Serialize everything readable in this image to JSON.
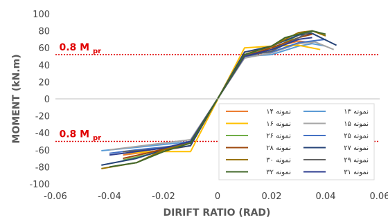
{
  "chart_data": {
    "type": "line",
    "title": "",
    "xlabel": "DIRIFT RATIO (RAD)",
    "ylabel": "MOMENT (kN.m)",
    "xlim": [
      -0.06,
      0.06
    ],
    "ylim": [
      -100,
      100
    ],
    "x_ticks": [
      "-0.06",
      "-0.04",
      "-0.02",
      "0",
      "0.02",
      "0.04",
      "0.06"
    ],
    "y_ticks": [
      "100",
      "80",
      "60",
      "40",
      "20",
      "0",
      "-20",
      "-40",
      "-60",
      "-80",
      "-100"
    ],
    "grid": false,
    "legend_position": "bottom-right",
    "reference_lines": [
      {
        "y": 52,
        "color": "#e00000",
        "style": "dotted"
      },
      {
        "y": -50,
        "color": "#e00000",
        "style": "dotted"
      }
    ],
    "annotations": [
      {
        "main": "0.8 M ",
        "sub": "pr",
        "x": -0.055,
        "y": 52
      },
      {
        "main": "0.8 M ",
        "sub": "pr",
        "x": -0.055,
        "y": -50
      }
    ],
    "series": [
      {
        "name": "نمونه ۱۳",
        "color": "#5b9bd5",
        "x": [
          -0.043,
          -0.03,
          -0.015,
          -0.01,
          0.01,
          0.02,
          0.03,
          0.035,
          0.04
        ],
        "y": [
          -61,
          -57,
          -52,
          -50,
          50,
          52,
          62,
          65,
          62
        ]
      },
      {
        "name": "نمونه ۱۴",
        "color": "#ed7d31",
        "x": [
          -0.035,
          -0.025,
          -0.015,
          -0.01,
          0.01,
          0.02,
          0.03,
          0.035
        ],
        "y": [
          -66,
          -62,
          -58,
          -55,
          55,
          60,
          68,
          66
        ]
      },
      {
        "name": "نمونه ۱۵",
        "color": "#a5a5a5",
        "x": [
          -0.04,
          -0.03,
          -0.015,
          -0.01,
          0.01,
          0.02,
          0.03,
          0.036,
          0.043
        ],
        "y": [
          -60,
          -56,
          -50,
          -48,
          48,
          54,
          65,
          67,
          58
        ]
      },
      {
        "name": "نمونه ۱۶",
        "color": "#ffc000",
        "x": [
          -0.035,
          -0.025,
          -0.01,
          0.01,
          0.02,
          0.03,
          0.038
        ],
        "y": [
          -64,
          -62,
          -62,
          60,
          62,
          63,
          58
        ]
      },
      {
        "name": "نمونه ۲۵",
        "color": "#4472c4",
        "x": [
          -0.04,
          -0.03,
          -0.015,
          -0.01,
          0.01,
          0.02,
          0.03,
          0.04
        ],
        "y": [
          -64,
          -60,
          -55,
          -52,
          52,
          55,
          66,
          70
        ]
      },
      {
        "name": "نمونه ۲۶",
        "color": "#70ad47",
        "x": [
          -0.035,
          -0.025,
          -0.015,
          -0.01,
          0.01,
          0.02,
          0.03,
          0.035
        ],
        "y": [
          -72,
          -65,
          -55,
          -52,
          52,
          58,
          75,
          78
        ]
      },
      {
        "name": "نمونه ۲۷",
        "color": "#264478",
        "x": [
          -0.043,
          -0.03,
          -0.02,
          -0.01,
          0.01,
          0.02,
          0.03,
          0.035,
          0.044
        ],
        "y": [
          -78,
          -70,
          -60,
          -55,
          55,
          62,
          75,
          77,
          63
        ]
      },
      {
        "name": "نمونه ۲۸",
        "color": "#9e480e",
        "x": [
          -0.035,
          -0.025,
          -0.015,
          -0.01,
          0.01,
          0.02,
          0.03,
          0.035
        ],
        "y": [
          -70,
          -63,
          -55,
          -50,
          50,
          60,
          72,
          76
        ]
      },
      {
        "name": "نمونه ۲۹",
        "color": "#636363",
        "x": [
          -0.035,
          -0.025,
          -0.015,
          -0.01,
          0.01,
          0.02,
          0.03,
          0.035
        ],
        "y": [
          -62,
          -60,
          -55,
          -50,
          50,
          56,
          72,
          80
        ]
      },
      {
        "name": "نمونه ۳۰",
        "color": "#997300",
        "x": [
          -0.043,
          -0.03,
          -0.02,
          -0.01,
          0.01,
          0.02,
          0.03,
          0.035,
          0.04
        ],
        "y": [
          -82,
          -75,
          -60,
          -52,
          52,
          62,
          78,
          80,
          74
        ]
      },
      {
        "name": "نمونه ۳۱",
        "color": "#2e3d8f",
        "x": [
          -0.04,
          -0.03,
          -0.02,
          -0.01,
          0.01,
          0.02,
          0.03,
          0.035
        ],
        "y": [
          -66,
          -62,
          -58,
          -50,
          50,
          58,
          70,
          72
        ]
      },
      {
        "name": "نمونه ۳۲",
        "color": "#43682b",
        "x": [
          -0.04,
          -0.03,
          -0.02,
          -0.01,
          0.01,
          0.02,
          0.025,
          0.035,
          0.04
        ],
        "y": [
          -80,
          -75,
          -62,
          -52,
          52,
          62,
          72,
          80,
          76
        ]
      }
    ]
  }
}
